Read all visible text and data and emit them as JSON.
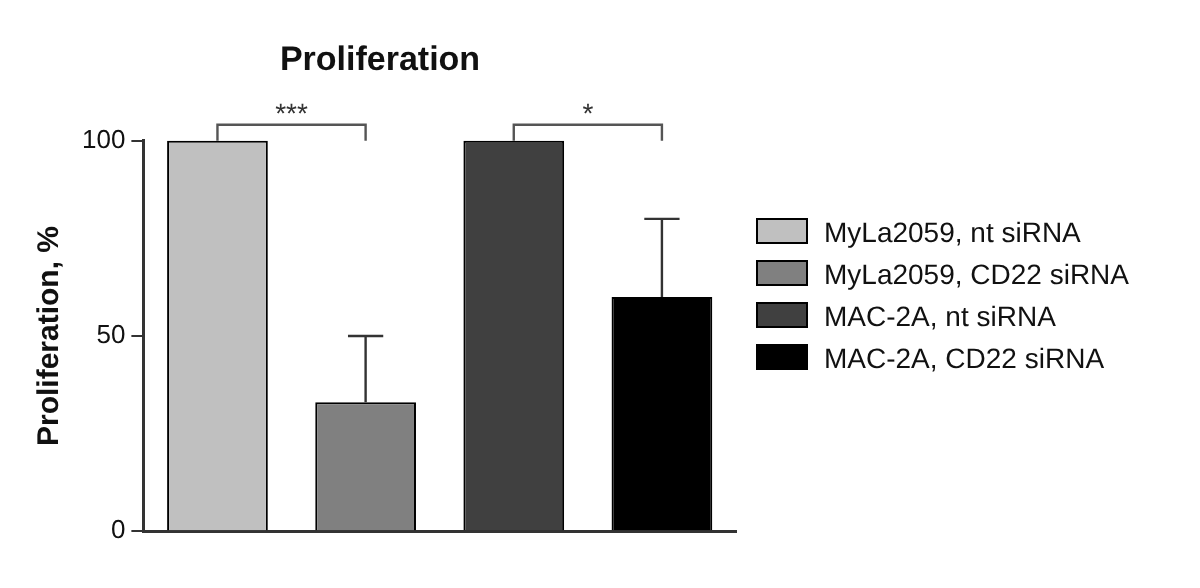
{
  "chart_data": {
    "type": "bar",
    "title": "Proliferation",
    "ylabel": "Proliferation, %",
    "categories": [
      null,
      null,
      null,
      null
    ],
    "series": [
      {
        "name": "MyLa2059, nt siRNA",
        "color": "#c0c0c0",
        "values": [
          100,
          null,
          null,
          null
        ]
      },
      {
        "name": "MyLa2059, CD22 siRNA",
        "color": "#808080",
        "values": [
          null,
          33,
          null,
          null
        ],
        "errors": [
          null,
          [
            33,
            50
          ],
          null,
          null
        ]
      },
      {
        "name": "MAC-2A, nt siRNA",
        "color": "#404040",
        "values": [
          null,
          null,
          100,
          null
        ]
      },
      {
        "name": "MAC-2A, CD22 siRNA",
        "color": "#000000",
        "values": [
          null,
          null,
          null,
          60
        ],
        "errors": [
          null,
          null,
          null,
          [
            60,
            80
          ]
        ]
      }
    ],
    "ylim": [
      0,
      100
    ],
    "yticks": [
      0,
      50,
      100
    ],
    "grid": false,
    "legend": "right",
    "annotations": [
      "***",
      "*"
    ]
  }
}
